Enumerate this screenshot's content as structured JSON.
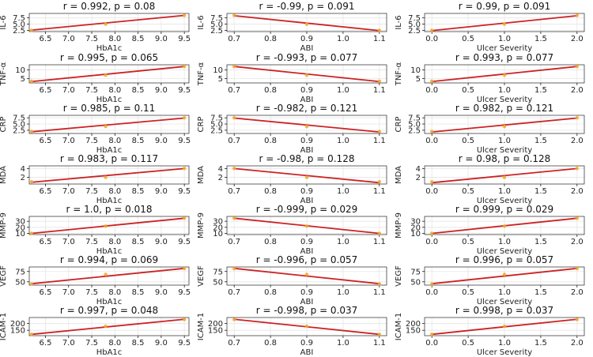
{
  "figure": {
    "background": "#ffffff"
  },
  "style": {
    "line_color": "#cc2222",
    "point_color": "#f5a623",
    "grid_color": "#e6e6e6",
    "axis_color": "#000000"
  },
  "chart_data": [
    {
      "type": "scatter",
      "title": "r = 0.992, p = 0.08",
      "xlabel": "HbA1c",
      "ylabel": "IL-6",
      "x": [
        6.2,
        7.8,
        9.5
      ],
      "y": [
        2.5,
        5.0,
        8.5
      ],
      "fit": [
        [
          6.2,
          2.6
        ],
        [
          9.5,
          8.5
        ]
      ],
      "xlim": [
        6.15,
        9.6
      ],
      "ylim": [
        2.0,
        9.3
      ],
      "xticks": [
        "6.5",
        "7.0",
        "7.5",
        "8.0",
        "8.5",
        "9.0",
        "9.5"
      ],
      "yticks": [
        "2.5",
        "5.0",
        "7.5"
      ],
      "grid": true
    },
    {
      "type": "scatter",
      "title": "r = -0.99, p = 0.091",
      "xlabel": "ABI",
      "ylabel": "IL-6",
      "x": [
        0.7,
        0.9,
        1.1
      ],
      "y": [
        8.5,
        5.0,
        2.5
      ],
      "fit": [
        [
          0.7,
          8.4
        ],
        [
          1.1,
          2.4
        ]
      ],
      "xlim": [
        0.68,
        1.12
      ],
      "ylim": [
        2.0,
        9.3
      ],
      "xticks": [
        "0.7",
        "0.8",
        "0.9",
        "1.0",
        "1.1"
      ],
      "yticks": [
        "2.5",
        "5.0",
        "7.5"
      ],
      "grid": true
    },
    {
      "type": "scatter",
      "title": "r = 0.99, p = 0.091",
      "xlabel": "Ulcer Severity",
      "ylabel": "IL-6",
      "x": [
        0,
        1,
        2
      ],
      "y": [
        2.5,
        5.0,
        8.5
      ],
      "fit": [
        [
          0,
          2.4
        ],
        [
          2,
          8.4
        ]
      ],
      "xlim": [
        -0.1,
        2.1
      ],
      "ylim": [
        2.0,
        9.3
      ],
      "xticks": [
        "0.0",
        "0.5",
        "1.0",
        "1.5",
        "2.0"
      ],
      "yticks": [
        "2.5",
        "5.0",
        "7.5"
      ],
      "grid": true
    },
    {
      "type": "scatter",
      "title": "r = 0.995, p = 0.065",
      "xlabel": "HbA1c",
      "ylabel": "TNF-α",
      "x": [
        6.2,
        7.8,
        9.5
      ],
      "y": [
        3.5,
        7.0,
        12.0
      ],
      "fit": [
        [
          6.2,
          3.3
        ],
        [
          9.5,
          12.0
        ]
      ],
      "xlim": [
        6.15,
        9.6
      ],
      "ylim": [
        2.5,
        13.0
      ],
      "xticks": [
        "6.5",
        "7.0",
        "7.5",
        "8.0",
        "8.5",
        "9.0",
        "9.5"
      ],
      "yticks": [
        "5",
        "10"
      ],
      "grid": true
    },
    {
      "type": "scatter",
      "title": "r = -0.993, p = 0.077",
      "xlabel": "ABI",
      "ylabel": "TNF-α",
      "x": [
        0.7,
        0.9,
        1.1
      ],
      "y": [
        12.0,
        7.0,
        3.5
      ],
      "fit": [
        [
          0.7,
          12.0
        ],
        [
          1.1,
          3.3
        ]
      ],
      "xlim": [
        0.68,
        1.12
      ],
      "ylim": [
        2.5,
        13.0
      ],
      "xticks": [
        "0.7",
        "0.8",
        "0.9",
        "1.0",
        "1.1"
      ],
      "yticks": [
        "5",
        "10"
      ],
      "grid": true
    },
    {
      "type": "scatter",
      "title": "r = 0.993, p = 0.077",
      "xlabel": "Ulcer Severity",
      "ylabel": "TNF-α",
      "x": [
        0,
        1,
        2
      ],
      "y": [
        3.5,
        7.0,
        12.0
      ],
      "fit": [
        [
          0,
          3.3
        ],
        [
          2,
          12.0
        ]
      ],
      "xlim": [
        -0.1,
        2.1
      ],
      "ylim": [
        2.5,
        13.0
      ],
      "xticks": [
        "0.0",
        "0.5",
        "1.0",
        "1.5",
        "2.0"
      ],
      "yticks": [
        "5",
        "10"
      ],
      "grid": true
    },
    {
      "type": "scatter",
      "title": "r = 0.985, p = 0.11",
      "xlabel": "HbA1c",
      "ylabel": "CRP",
      "x": [
        6.2,
        7.8,
        9.5
      ],
      "y": [
        2.0,
        4.0,
        7.5
      ],
      "fit": [
        [
          6.2,
          1.9
        ],
        [
          9.5,
          7.4
        ]
      ],
      "xlim": [
        6.15,
        9.6
      ],
      "ylim": [
        1.2,
        8.5
      ],
      "xticks": [
        "6.5",
        "7.0",
        "7.5",
        "8.0",
        "8.5",
        "9.0",
        "9.5"
      ],
      "yticks": [
        "2.5",
        "5.0",
        "7.5"
      ],
      "grid": true
    },
    {
      "type": "scatter",
      "title": "r = -0.982, p = 0.121",
      "xlabel": "ABI",
      "ylabel": "CRP",
      "x": [
        0.7,
        0.9,
        1.1
      ],
      "y": [
        7.5,
        4.0,
        2.0
      ],
      "fit": [
        [
          0.7,
          7.4
        ],
        [
          1.1,
          1.8
        ]
      ],
      "xlim": [
        0.68,
        1.12
      ],
      "ylim": [
        1.2,
        8.5
      ],
      "xticks": [
        "0.7",
        "0.8",
        "0.9",
        "1.0",
        "1.1"
      ],
      "yticks": [
        "2.5",
        "5.0",
        "7.5"
      ],
      "grid": true
    },
    {
      "type": "scatter",
      "title": "r = 0.982, p = 0.121",
      "xlabel": "Ulcer Severity",
      "ylabel": "CRP",
      "x": [
        0,
        1,
        2
      ],
      "y": [
        2.0,
        4.0,
        7.5
      ],
      "fit": [
        [
          0,
          1.8
        ],
        [
          2,
          7.4
        ]
      ],
      "xlim": [
        -0.1,
        2.1
      ],
      "ylim": [
        1.2,
        8.5
      ],
      "xticks": [
        "0.0",
        "0.5",
        "1.0",
        "1.5",
        "2.0"
      ],
      "yticks": [
        "2.5",
        "5.0",
        "7.5"
      ],
      "grid": true
    },
    {
      "type": "scatter",
      "title": "r = 0.983, p = 0.117",
      "xlabel": "HbA1c",
      "ylabel": "MDA",
      "x": [
        6.2,
        7.8,
        9.5
      ],
      "y": [
        1.0,
        2.0,
        4.0
      ],
      "fit": [
        [
          6.2,
          0.9
        ],
        [
          9.5,
          4.0
        ]
      ],
      "xlim": [
        6.15,
        9.6
      ],
      "ylim": [
        0.5,
        4.6
      ],
      "xticks": [
        "6.5",
        "7.0",
        "7.5",
        "8.0",
        "8.5",
        "9.0",
        "9.5"
      ],
      "yticks": [
        "2",
        "4"
      ],
      "grid": true
    },
    {
      "type": "scatter",
      "title": "r = -0.98, p = 0.128",
      "xlabel": "ABI",
      "ylabel": "MDA",
      "x": [
        0.7,
        0.9,
        1.1
      ],
      "y": [
        4.0,
        2.0,
        1.0
      ],
      "fit": [
        [
          0.7,
          4.0
        ],
        [
          1.1,
          0.8
        ]
      ],
      "xlim": [
        0.68,
        1.12
      ],
      "ylim": [
        0.5,
        4.6
      ],
      "xticks": [
        "0.7",
        "0.8",
        "0.9",
        "1.0",
        "1.1"
      ],
      "yticks": [
        "2",
        "4"
      ],
      "grid": true
    },
    {
      "type": "scatter",
      "title": "r = 0.98, p = 0.128",
      "xlabel": "Ulcer Severity",
      "ylabel": "MDA",
      "x": [
        0,
        1,
        2
      ],
      "y": [
        1.0,
        2.0,
        4.0
      ],
      "fit": [
        [
          0,
          0.8
        ],
        [
          2,
          4.0
        ]
      ],
      "xlim": [
        -0.1,
        2.1
      ],
      "ylim": [
        0.5,
        4.6
      ],
      "xticks": [
        "0.0",
        "0.5",
        "1.0",
        "1.5",
        "2.0"
      ],
      "yticks": [
        "2",
        "4"
      ],
      "grid": true
    },
    {
      "type": "scatter",
      "title": "r = 1.0, p = 0.018",
      "xlabel": "HbA1c",
      "ylabel": "MMP-9",
      "x": [
        6.2,
        7.8,
        9.5
      ],
      "y": [
        10,
        22,
        35
      ],
      "fit": [
        [
          6.2,
          10.0
        ],
        [
          9.5,
          35.0
        ]
      ],
      "xlim": [
        6.15,
        9.6
      ],
      "ylim": [
        8,
        38
      ],
      "xticks": [
        "6.5",
        "7.0",
        "7.5",
        "8.0",
        "8.5",
        "9.0",
        "9.5"
      ],
      "yticks": [
        "10",
        "20",
        "30"
      ],
      "grid": true
    },
    {
      "type": "scatter",
      "title": "r = -0.999, p = 0.029",
      "xlabel": "ABI",
      "ylabel": "MMP-9",
      "x": [
        0.7,
        0.9,
        1.1
      ],
      "y": [
        35,
        22,
        10
      ],
      "fit": [
        [
          0.7,
          35.0
        ],
        [
          1.1,
          10.0
        ]
      ],
      "xlim": [
        0.68,
        1.12
      ],
      "ylim": [
        8,
        38
      ],
      "xticks": [
        "0.7",
        "0.8",
        "0.9",
        "1.0",
        "1.1"
      ],
      "yticks": [
        "10",
        "20",
        "30"
      ],
      "grid": true
    },
    {
      "type": "scatter",
      "title": "r = 0.999, p = 0.029",
      "xlabel": "Ulcer Severity",
      "ylabel": "MMP-9",
      "x": [
        0,
        1,
        2
      ],
      "y": [
        10,
        22,
        35
      ],
      "fit": [
        [
          0,
          10.0
        ],
        [
          2,
          35.0
        ]
      ],
      "xlim": [
        -0.1,
        2.1
      ],
      "ylim": [
        8,
        38
      ],
      "xticks": [
        "0.0",
        "0.5",
        "1.0",
        "1.5",
        "2.0"
      ],
      "yticks": [
        "10",
        "20",
        "30"
      ],
      "grid": true
    },
    {
      "type": "scatter",
      "title": "r = 0.994, p = 0.069",
      "xlabel": "HbA1c",
      "ylabel": "VEGF",
      "x": [
        6.2,
        7.8,
        9.5
      ],
      "y": [
        45,
        68,
        82
      ],
      "fit": [
        [
          6.2,
          45.5
        ],
        [
          9.5,
          82.5
        ]
      ],
      "xlim": [
        6.15,
        9.6
      ],
      "ylim": [
        42,
        86
      ],
      "xticks": [
        "6.5",
        "7.0",
        "7.5",
        "8.0",
        "8.5",
        "9.0",
        "9.5"
      ],
      "yticks": [
        "50",
        "75"
      ],
      "grid": true
    },
    {
      "type": "scatter",
      "title": "r = -0.996, p = 0.057",
      "xlabel": "ABI",
      "ylabel": "VEGF",
      "x": [
        0.7,
        0.9,
        1.1
      ],
      "y": [
        82,
        68,
        45
      ],
      "fit": [
        [
          0.7,
          82.5
        ],
        [
          1.1,
          45.5
        ]
      ],
      "xlim": [
        0.68,
        1.12
      ],
      "ylim": [
        42,
        86
      ],
      "xticks": [
        "0.7",
        "0.8",
        "0.9",
        "1.0",
        "1.1"
      ],
      "yticks": [
        "50",
        "75"
      ],
      "grid": true
    },
    {
      "type": "scatter",
      "title": "r = 0.996, p = 0.057",
      "xlabel": "Ulcer Severity",
      "ylabel": "VEGF",
      "x": [
        0,
        1,
        2
      ],
      "y": [
        45,
        68,
        82
      ],
      "fit": [
        [
          0,
          45.5
        ],
        [
          2,
          82.5
        ]
      ],
      "xlim": [
        -0.1,
        2.1
      ],
      "ylim": [
        42,
        86
      ],
      "xticks": [
        "0.0",
        "0.5",
        "1.0",
        "1.5",
        "2.0"
      ],
      "yticks": [
        "50",
        "75"
      ],
      "grid": true
    },
    {
      "type": "scatter",
      "title": "r = 0.997, p = 0.048",
      "xlabel": "HbA1c",
      "ylabel": "ICAM-1",
      "x": [
        6.2,
        7.8,
        9.5
      ],
      "y": [
        120,
        180,
        230
      ],
      "fit": [
        [
          6.2,
          120.0
        ],
        [
          9.5,
          232.0
        ]
      ],
      "xlim": [
        6.15,
        9.6
      ],
      "ylim": [
        110,
        245
      ],
      "xticks": [
        "6.5",
        "7.0",
        "7.5",
        "8.0",
        "8.5",
        "9.0",
        "9.5"
      ],
      "yticks": [
        "150",
        "200"
      ],
      "grid": true
    },
    {
      "type": "scatter",
      "title": "r = -0.998, p = 0.037",
      "xlabel": "ABI",
      "ylabel": "ICAM-1",
      "x": [
        0.7,
        0.9,
        1.1
      ],
      "y": [
        230,
        180,
        120
      ],
      "fit": [
        [
          0.7,
          232.0
        ],
        [
          1.1,
          120.0
        ]
      ],
      "xlim": [
        0.68,
        1.12
      ],
      "ylim": [
        110,
        245
      ],
      "xticks": [
        "0.7",
        "0.8",
        "0.9",
        "1.0",
        "1.1"
      ],
      "yticks": [
        "150",
        "200"
      ],
      "grid": true
    },
    {
      "type": "scatter",
      "title": "r = 0.998, p = 0.037",
      "xlabel": "Ulcer Severity",
      "ylabel": "ICAM-1",
      "x": [
        0,
        1,
        2
      ],
      "y": [
        120,
        180,
        230
      ],
      "fit": [
        [
          0,
          120.0
        ],
        [
          2,
          232.0
        ]
      ],
      "xlim": [
        -0.1,
        2.1
      ],
      "ylim": [
        110,
        245
      ],
      "xticks": [
        "0.0",
        "0.5",
        "1.0",
        "1.5",
        "2.0"
      ],
      "yticks": [
        "150",
        "200"
      ],
      "grid": true
    }
  ]
}
